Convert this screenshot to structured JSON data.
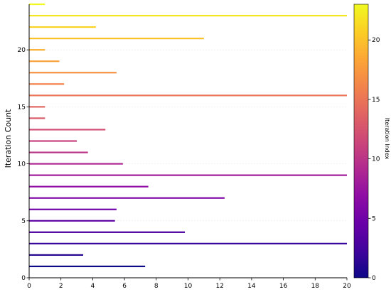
{
  "chart_data": {
    "type": "bar",
    "orientation": "horizontal",
    "title": "",
    "xlabel": "",
    "ylabel": "Iteration Count",
    "xlim": [
      0,
      20
    ],
    "ylim": [
      0,
      24
    ],
    "xticks": [
      0,
      2,
      4,
      6,
      8,
      10,
      12,
      14,
      16,
      18,
      20
    ],
    "yticks": [
      0,
      5,
      10,
      15,
      20
    ],
    "grid": true,
    "categories": [
      1,
      2,
      3,
      4,
      5,
      6,
      7,
      8,
      9,
      10,
      11,
      12,
      13,
      14,
      15,
      16,
      17,
      18,
      19,
      20,
      21,
      22,
      23,
      24
    ],
    "values": [
      7.3,
      3.4,
      20,
      9.8,
      5.4,
      5.5,
      12.3,
      7.5,
      20,
      5.9,
      3.7,
      3.0,
      4.8,
      1.0,
      1.0,
      20,
      2.2,
      5.5,
      1.9,
      1.0,
      11.0,
      4.2,
      20,
      1.0
    ],
    "colormap": "plasma",
    "colorbar": {
      "label": "Iteration Index",
      "range": [
        0,
        23
      ],
      "ticks": [
        0,
        5,
        10,
        15,
        20
      ]
    }
  }
}
